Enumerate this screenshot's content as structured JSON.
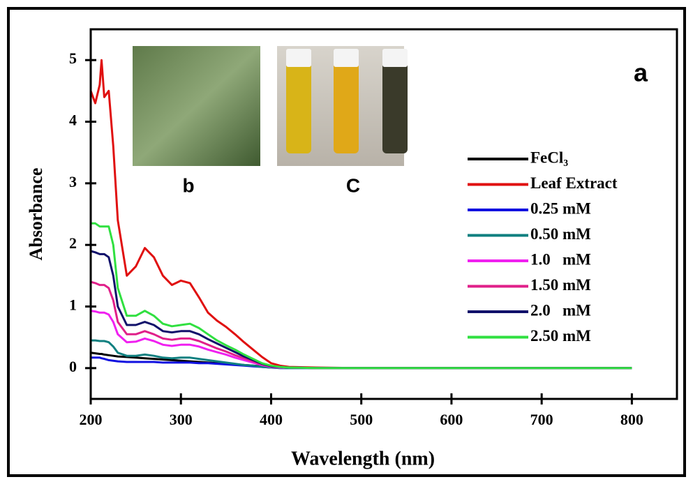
{
  "chart_data": {
    "type": "line",
    "xlabel": "Wavelength (nm)",
    "ylabel": "Absorbance",
    "annotations": [
      "a",
      "b",
      "C"
    ],
    "x": [
      200,
      205,
      210,
      212,
      215,
      220,
      225,
      230,
      240,
      250,
      260,
      270,
      280,
      290,
      300,
      310,
      320,
      330,
      340,
      350,
      360,
      370,
      380,
      390,
      400,
      410,
      420,
      450,
      500,
      600,
      700,
      800
    ],
    "series": [
      {
        "name": "FeCl₃",
        "color": "#000000",
        "values": [
          0.25,
          0.24,
          0.23,
          0.23,
          0.22,
          0.21,
          0.2,
          0.19,
          0.18,
          0.17,
          0.16,
          0.15,
          0.14,
          0.13,
          0.12,
          0.11,
          0.1,
          0.09,
          0.08,
          0.07,
          0.06,
          0.05,
          0.04,
          0.03,
          0.02,
          0.01,
          0.01,
          0,
          0,
          0,
          0,
          0
        ]
      },
      {
        "name": "Leaf Extract",
        "color": "#e01010",
        "values": [
          4.5,
          4.3,
          4.6,
          5.0,
          4.4,
          4.5,
          3.6,
          2.4,
          1.5,
          1.65,
          1.95,
          1.8,
          1.5,
          1.35,
          1.42,
          1.38,
          1.15,
          0.9,
          0.77,
          0.67,
          0.55,
          0.42,
          0.3,
          0.18,
          0.08,
          0.04,
          0.02,
          0.01,
          0,
          0,
          0,
          0
        ]
      },
      {
        "name": "0.25 mM",
        "color": "#1010e0",
        "values": [
          0.17,
          0.17,
          0.17,
          0.16,
          0.15,
          0.13,
          0.12,
          0.11,
          0.1,
          0.1,
          0.1,
          0.1,
          0.09,
          0.09,
          0.09,
          0.09,
          0.08,
          0.08,
          0.07,
          0.06,
          0.05,
          0.04,
          0.03,
          0.02,
          0.01,
          0,
          0,
          0,
          0,
          0,
          0,
          0
        ]
      },
      {
        "name": "0.50 mM",
        "color": "#108080",
        "values": [
          0.45,
          0.45,
          0.44,
          0.44,
          0.44,
          0.42,
          0.35,
          0.25,
          0.2,
          0.2,
          0.22,
          0.2,
          0.17,
          0.16,
          0.17,
          0.17,
          0.15,
          0.13,
          0.11,
          0.09,
          0.07,
          0.05,
          0.04,
          0.02,
          0.01,
          0,
          0,
          0,
          0,
          0,
          0,
          0
        ]
      },
      {
        "name": "1.0   mM",
        "color": "#f020f0",
        "values": [
          0.93,
          0.92,
          0.9,
          0.9,
          0.9,
          0.87,
          0.75,
          0.55,
          0.42,
          0.43,
          0.48,
          0.44,
          0.38,
          0.36,
          0.38,
          0.38,
          0.35,
          0.3,
          0.26,
          0.22,
          0.17,
          0.13,
          0.09,
          0.05,
          0.02,
          0.01,
          0.01,
          0,
          0,
          0,
          0,
          0
        ]
      },
      {
        "name": "1.50 mM",
        "color": "#e0208a",
        "values": [
          1.4,
          1.38,
          1.35,
          1.35,
          1.35,
          1.3,
          1.1,
          0.75,
          0.55,
          0.55,
          0.6,
          0.55,
          0.48,
          0.46,
          0.48,
          0.48,
          0.44,
          0.38,
          0.32,
          0.27,
          0.21,
          0.16,
          0.11,
          0.06,
          0.03,
          0.02,
          0.01,
          0,
          0,
          0,
          0,
          0
        ]
      },
      {
        "name": "2.0   mM",
        "color": "#10106a",
        "values": [
          1.9,
          1.88,
          1.85,
          1.85,
          1.85,
          1.8,
          1.5,
          1.0,
          0.7,
          0.7,
          0.75,
          0.7,
          0.6,
          0.58,
          0.6,
          0.6,
          0.55,
          0.47,
          0.4,
          0.33,
          0.26,
          0.19,
          0.13,
          0.07,
          0.03,
          0.02,
          0.01,
          0,
          0,
          0,
          0,
          0
        ]
      },
      {
        "name": "2.50 mM",
        "color": "#30e040",
        "values": [
          2.35,
          2.35,
          2.3,
          2.3,
          2.3,
          2.3,
          2.0,
          1.3,
          0.85,
          0.85,
          0.93,
          0.85,
          0.72,
          0.68,
          0.7,
          0.72,
          0.65,
          0.55,
          0.45,
          0.37,
          0.3,
          0.22,
          0.15,
          0.08,
          0.04,
          0.02,
          0.01,
          0,
          0,
          0,
          0,
          0
        ]
      }
    ],
    "xlim": [
      200,
      850
    ],
    "ylim": [
      -0.5,
      5.5
    ],
    "xticks": [
      200,
      300,
      400,
      500,
      600,
      700,
      800
    ],
    "yticks": [
      0,
      1,
      2,
      3,
      4,
      5
    ]
  }
}
